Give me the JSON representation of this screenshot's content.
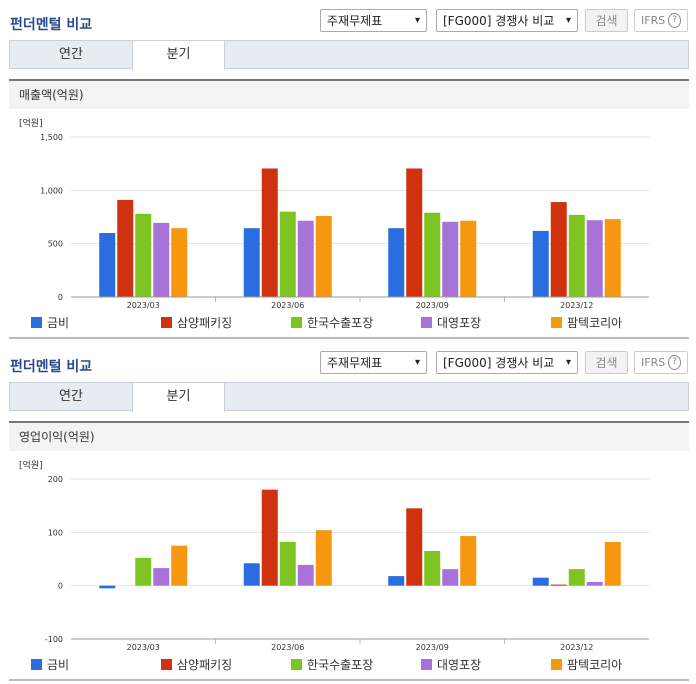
{
  "colors": [
    "#2a6de0",
    "#d0310f",
    "#7dc420",
    "#a873d8",
    "#f7960f"
  ],
  "panels": [
    {
      "title": "펀더멘털 비교",
      "select_type": "주재무제표",
      "select_group": "[FG000] 경쟁사 비교",
      "search_label": "검색",
      "ifrs_label": "IFRS",
      "help_glyph": "?",
      "tabs": [
        "연간",
        "분기"
      ],
      "section_title": "매출액(억원)"
    },
    {
      "title": "펀더멘털 비교",
      "select_type": "주재무제표",
      "select_group": "[FG000] 경쟁사 비교",
      "search_label": "검색",
      "ifrs_label": "IFRS",
      "help_glyph": "?",
      "tabs": [
        "연간",
        "분기"
      ],
      "section_title": "영업이익(억원)"
    }
  ],
  "chart_data": [
    {
      "type": "bar",
      "unit_label": "[억원]",
      "categories": [
        "2023/03",
        "2023/06",
        "2023/09",
        "2023/12"
      ],
      "ylim": [
        0,
        1500
      ],
      "yticks": [
        0,
        500,
        1000,
        1500
      ],
      "ytick_labels": [
        "0",
        "500",
        "1,000",
        "1,500"
      ],
      "series": [
        {
          "name": "금비",
          "values": [
            600,
            645,
            645,
            620
          ]
        },
        {
          "name": "삼양패키징",
          "values": [
            910,
            1205,
            1205,
            890
          ]
        },
        {
          "name": "한국수출포장",
          "values": [
            780,
            800,
            790,
            770
          ]
        },
        {
          "name": "대영포장",
          "values": [
            695,
            715,
            705,
            720
          ]
        },
        {
          "name": "팜텍코리아",
          "values": [
            645,
            760,
            715,
            730
          ]
        }
      ]
    },
    {
      "type": "bar",
      "unit_label": "[억원]",
      "categories": [
        "2023/03",
        "2023/06",
        "2023/09",
        "2023/12"
      ],
      "ylim": [
        -100,
        200
      ],
      "yticks": [
        -100,
        0,
        100,
        200
      ],
      "ytick_labels": [
        "-100",
        "0",
        "100",
        "200"
      ],
      "series": [
        {
          "name": "금비",
          "values": [
            -5,
            42,
            18,
            15
          ]
        },
        {
          "name": "삼양패키징",
          "values": [
            0,
            180,
            145,
            2
          ]
        },
        {
          "name": "한국수출포장",
          "values": [
            52,
            82,
            65,
            31
          ]
        },
        {
          "name": "대영포장",
          "values": [
            33,
            39,
            31,
            7
          ]
        },
        {
          "name": "팜텍코리아",
          "values": [
            75,
            104,
            93,
            82
          ]
        }
      ]
    }
  ]
}
